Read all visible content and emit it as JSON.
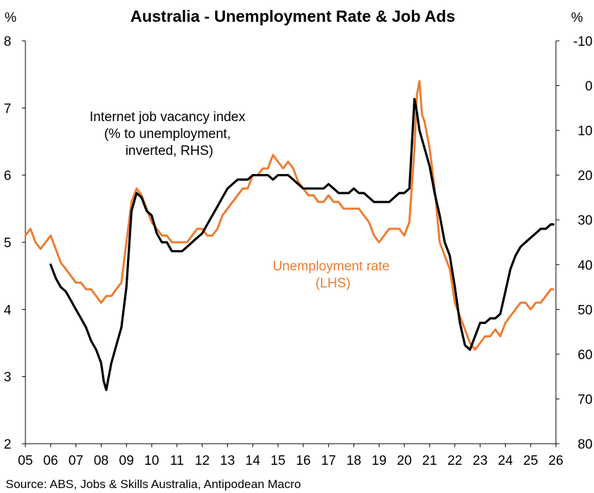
{
  "chart_data": {
    "type": "line",
    "title": "Australia - Unemployment Rate & Job Ads",
    "left_unit": "%",
    "right_unit": "%",
    "x_tick_labels": [
      "05",
      "06",
      "07",
      "08",
      "09",
      "10",
      "11",
      "12",
      "13",
      "14",
      "15",
      "16",
      "17",
      "18",
      "19",
      "20",
      "21",
      "22",
      "23",
      "24",
      "25",
      "26"
    ],
    "xlim": [
      2005,
      2026
    ],
    "ylim_left": [
      2,
      8
    ],
    "ylim_right": [
      -10,
      80
    ],
    "y_left_ticks": [
      "2",
      "3",
      "4",
      "5",
      "6",
      "7",
      "8"
    ],
    "y_right_ticks": [
      "-10",
      "0",
      "10",
      "20",
      "30",
      "40",
      "50",
      "60",
      "70",
      "80"
    ],
    "right_axis_inverted": true,
    "grid": false,
    "source": "Source: ABS, Jobs & Skills Australia, Antipodean Macro",
    "series": [
      {
        "name": "Unemployment rate (LHS)",
        "axis": "left",
        "color": "#ED7D31",
        "label_lines": [
          "Unemployment rate",
          "(LHS)"
        ],
        "x": [
          2005.0,
          2005.2,
          2005.4,
          2005.6,
          2005.8,
          2006.0,
          2006.2,
          2006.4,
          2006.6,
          2006.8,
          2007.0,
          2007.2,
          2007.4,
          2007.6,
          2007.8,
          2008.0,
          2008.2,
          2008.4,
          2008.6,
          2008.8,
          2009.0,
          2009.2,
          2009.4,
          2009.6,
          2009.8,
          2010.0,
          2010.2,
          2010.4,
          2010.6,
          2010.8,
          2011.0,
          2011.2,
          2011.4,
          2011.6,
          2011.8,
          2012.0,
          2012.2,
          2012.4,
          2012.6,
          2012.8,
          2013.0,
          2013.2,
          2013.4,
          2013.6,
          2013.8,
          2014.0,
          2014.2,
          2014.4,
          2014.6,
          2014.8,
          2015.0,
          2015.2,
          2015.4,
          2015.6,
          2015.8,
          2016.0,
          2016.2,
          2016.4,
          2016.6,
          2016.8,
          2017.0,
          2017.2,
          2017.4,
          2017.6,
          2017.8,
          2018.0,
          2018.2,
          2018.4,
          2018.6,
          2018.8,
          2019.0,
          2019.2,
          2019.4,
          2019.6,
          2019.8,
          2020.0,
          2020.2,
          2020.4,
          2020.5,
          2020.6,
          2020.7,
          2020.8,
          2021.0,
          2021.2,
          2021.4,
          2021.6,
          2021.8,
          2022.0,
          2022.2,
          2022.4,
          2022.6,
          2022.8,
          2023.0,
          2023.2,
          2023.4,
          2023.6,
          2023.8,
          2024.0,
          2024.2,
          2024.4,
          2024.6,
          2024.8,
          2025.0,
          2025.2,
          2025.4,
          2025.6,
          2025.8,
          2025.9
        ],
        "values": [
          5.1,
          5.2,
          5.0,
          4.9,
          5.0,
          5.1,
          4.9,
          4.7,
          4.6,
          4.5,
          4.4,
          4.4,
          4.3,
          4.3,
          4.2,
          4.1,
          4.2,
          4.2,
          4.3,
          4.4,
          5.0,
          5.6,
          5.8,
          5.7,
          5.5,
          5.3,
          5.2,
          5.1,
          5.1,
          5.0,
          5.0,
          5.0,
          5.0,
          5.1,
          5.2,
          5.2,
          5.1,
          5.1,
          5.2,
          5.4,
          5.5,
          5.6,
          5.7,
          5.8,
          5.8,
          6.0,
          6.0,
          6.1,
          6.1,
          6.3,
          6.2,
          6.1,
          6.2,
          6.1,
          5.9,
          5.8,
          5.7,
          5.7,
          5.6,
          5.6,
          5.7,
          5.6,
          5.6,
          5.5,
          5.5,
          5.5,
          5.5,
          5.4,
          5.3,
          5.1,
          5.0,
          5.1,
          5.2,
          5.2,
          5.2,
          5.1,
          5.3,
          6.4,
          7.2,
          7.4,
          6.9,
          6.8,
          6.4,
          5.8,
          5.0,
          4.8,
          4.6,
          4.1,
          3.9,
          3.7,
          3.5,
          3.4,
          3.5,
          3.6,
          3.6,
          3.7,
          3.6,
          3.8,
          3.9,
          4.0,
          4.1,
          4.1,
          4.0,
          4.1,
          4.1,
          4.2,
          4.3,
          4.3
        ]
      },
      {
        "name": "Internet job vacancy index (% to unemployment, inverted, RHS)",
        "axis": "right",
        "color": "#000000",
        "label_lines": [
          "Internet job vacancy index",
          "(% to unemployment,",
          "inverted, RHS)"
        ],
        "x": [
          2006.0,
          2006.2,
          2006.4,
          2006.6,
          2006.8,
          2007.0,
          2007.2,
          2007.4,
          2007.6,
          2007.8,
          2008.0,
          2008.1,
          2008.2,
          2008.4,
          2008.6,
          2008.8,
          2009.0,
          2009.2,
          2009.4,
          2009.6,
          2009.8,
          2010.0,
          2010.2,
          2010.4,
          2010.6,
          2010.8,
          2011.0,
          2011.2,
          2011.4,
          2011.6,
          2011.8,
          2012.0,
          2012.2,
          2012.4,
          2012.6,
          2012.8,
          2013.0,
          2013.2,
          2013.4,
          2013.6,
          2013.8,
          2014.0,
          2014.2,
          2014.4,
          2014.6,
          2014.8,
          2015.0,
          2015.2,
          2015.4,
          2015.6,
          2015.8,
          2016.0,
          2016.2,
          2016.4,
          2016.6,
          2016.8,
          2017.0,
          2017.2,
          2017.4,
          2017.6,
          2017.8,
          2018.0,
          2018.2,
          2018.4,
          2018.6,
          2018.8,
          2019.0,
          2019.2,
          2019.4,
          2019.6,
          2019.8,
          2020.0,
          2020.2,
          2020.4,
          2020.5,
          2020.6,
          2020.8,
          2021.0,
          2021.2,
          2021.4,
          2021.6,
          2021.8,
          2022.0,
          2022.2,
          2022.4,
          2022.6,
          2022.8,
          2023.0,
          2023.2,
          2023.4,
          2023.6,
          2023.8,
          2024.0,
          2024.2,
          2024.4,
          2024.6,
          2024.8,
          2025.0,
          2025.2,
          2025.4,
          2025.6,
          2025.8,
          2025.9
        ],
        "values": [
          40,
          43,
          45,
          46,
          48,
          50,
          52,
          54,
          57,
          59,
          62,
          66,
          68,
          62,
          58,
          54,
          45,
          28,
          24,
          25,
          28,
          29,
          33,
          35,
          35,
          37,
          37,
          37,
          36,
          35,
          34,
          33,
          31,
          29,
          27,
          25,
          23,
          22,
          21,
          21,
          21,
          20,
          20,
          20,
          20,
          21,
          20,
          20,
          20,
          21,
          22,
          23,
          23,
          23,
          23,
          23,
          22,
          23,
          24,
          24,
          24,
          23,
          24,
          24,
          25,
          26,
          26,
          26,
          26,
          25,
          24,
          24,
          23,
          3,
          6,
          10,
          14,
          18,
          24,
          29,
          35,
          38,
          45,
          53,
          58,
          59,
          56,
          53,
          53,
          52,
          52,
          51,
          46,
          41,
          38,
          36,
          35,
          34,
          33,
          32,
          32,
          31,
          31
        ]
      }
    ]
  }
}
